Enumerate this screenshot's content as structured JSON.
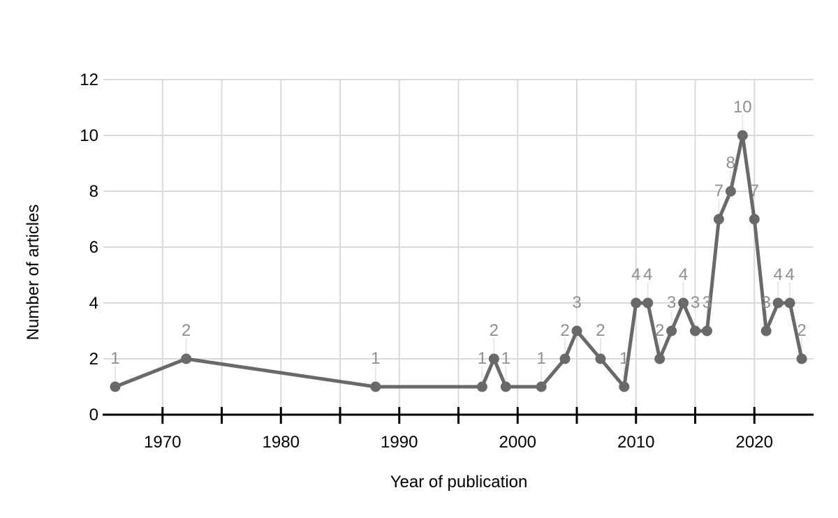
{
  "chart_data": {
    "type": "line",
    "title": "",
    "xlabel": "Year of publication",
    "ylabel": "Number of articles",
    "x": [
      1966,
      1972,
      1988,
      1997,
      1998,
      1999,
      2002,
      2004,
      2005,
      2007,
      2009,
      2010,
      2011,
      2012,
      2013,
      2014,
      2015,
      2016,
      2017,
      2018,
      2019,
      2020,
      2021,
      2022,
      2023,
      2024
    ],
    "values": [
      1,
      2,
      1,
      1,
      2,
      1,
      1,
      2,
      3,
      2,
      1,
      4,
      4,
      2,
      3,
      4,
      3,
      3,
      7,
      8,
      10,
      7,
      3,
      4,
      4,
      2
    ],
    "xlim": [
      1965,
      2025
    ],
    "ylim": [
      0,
      12
    ],
    "x_gridline_years": [
      1970,
      1975,
      1980,
      1985,
      1990,
      1995,
      2000,
      2005,
      2010,
      2015,
      2020
    ],
    "x_labeled_ticks": [
      1970,
      1980,
      1990,
      2000,
      2010,
      2020
    ],
    "y_tick_values": [
      0,
      2,
      4,
      6,
      8,
      10,
      12
    ],
    "grid": true,
    "legend": "none",
    "point_labels_visible": true,
    "colors": {
      "line": "#696969",
      "point": "#696969",
      "data_label": "#8e8e8e",
      "leader": "#e8e8e8",
      "gridline": "#d9d9d9",
      "axis": "#000000",
      "tick_label": "#000000"
    }
  }
}
